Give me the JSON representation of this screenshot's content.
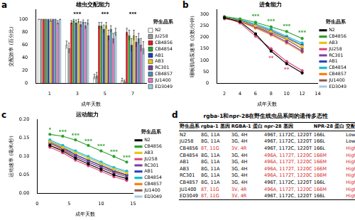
{
  "chart_data": [
    {
      "panel": "a",
      "type": "bar",
      "title": "雄虫交配能力",
      "x_label": "成年天数",
      "y_label": "交配效率 (百分比)",
      "categories": [
        "1",
        "3",
        "5",
        "7"
      ],
      "ylim": [
        0,
        115
      ],
      "yticks": [
        0,
        20,
        40,
        60,
        80,
        100
      ],
      "grid": false,
      "legend": "right",
      "legend_title": "野生品系",
      "series": [
        {
          "name": "N2",
          "color": "#ffffff",
          "values": [
            100,
            60,
            10,
            5
          ],
          "errors": [
            0,
            6,
            4,
            3
          ]
        },
        {
          "name": "JU258",
          "color": "#9a9a9a",
          "values": [
            100,
            55,
            12,
            3
          ],
          "errors": [
            0,
            8,
            5,
            2
          ]
        },
        {
          "name": "CB4856",
          "color": "#e41a1c",
          "values": [
            100,
            95,
            90,
            80
          ],
          "errors": [
            0,
            3,
            5,
            6
          ]
        },
        {
          "name": "CB4854",
          "color": "#2ca02c",
          "values": [
            100,
            98,
            90,
            75
          ],
          "errors": [
            0,
            2,
            5,
            8
          ]
        },
        {
          "name": "AB1",
          "color": "#1f3fbf",
          "values": [
            100,
            95,
            85,
            60
          ],
          "errors": [
            0,
            4,
            6,
            10
          ]
        },
        {
          "name": "AB3",
          "color": "#e6c619",
          "values": [
            98,
            97,
            90,
            75
          ],
          "errors": [
            2,
            3,
            5,
            8
          ]
        },
        {
          "name": "RC301",
          "color": "#7b3f9e",
          "values": [
            100,
            92,
            75,
            65
          ],
          "errors": [
            0,
            4,
            8,
            8
          ]
        },
        {
          "name": "CB4857",
          "color": "#4f8fb0",
          "values": [
            100,
            96,
            85,
            70
          ],
          "errors": [
            0,
            3,
            5,
            8
          ]
        },
        {
          "name": "JU1400",
          "color": "#e377c2",
          "values": [
            95,
            90,
            70,
            60
          ],
          "errors": [
            3,
            5,
            8,
            10
          ]
        },
        {
          "name": "ED3049",
          "color": "#9ecae1",
          "values": [
            100,
            95,
            80,
            55
          ],
          "errors": [
            0,
            4,
            6,
            10
          ]
        }
      ],
      "annotations": [
        {
          "x": "3",
          "y": 108,
          "text": "***",
          "color": "#000000"
        },
        {
          "x": "5",
          "y": 108,
          "text": "***",
          "color": "#000000"
        },
        {
          "x": "7",
          "y": 108,
          "text": "***",
          "color": "#000000"
        }
      ]
    },
    {
      "panel": "b",
      "type": "line",
      "title": "进食能力",
      "x_label": "成年天数",
      "y_label": "咽喉肌肉泵速率 (次数/分钟)",
      "x": [
        2,
        4,
        6,
        8,
        10,
        12
      ],
      "xlim": [
        1,
        14
      ],
      "xticks": [
        2,
        4,
        6,
        8,
        10,
        12,
        14
      ],
      "ylim": [
        0,
        320
      ],
      "yticks": [
        0,
        50,
        100,
        150,
        200,
        250,
        300
      ],
      "grid": false,
      "legend": "right",
      "legend_title": "野生品系",
      "marker": "circle",
      "series": [
        {
          "name": "N2",
          "color": "#000000",
          "values": [
            285,
            268,
            215,
            140,
            85,
            45
          ]
        },
        {
          "name": "CB4856",
          "color": "#2ca02c",
          "values": [
            290,
            280,
            265,
            245,
            225,
            195
          ]
        },
        {
          "name": "AB3",
          "color": "#e6c619",
          "values": [
            285,
            272,
            250,
            225,
            195,
            160
          ]
        },
        {
          "name": "JU258",
          "color": "#e0407a",
          "values": [
            288,
            262,
            205,
            150,
            95,
            55
          ]
        },
        {
          "name": "RC301",
          "color": "#7b3f9e",
          "values": [
            282,
            270,
            245,
            215,
            180,
            140
          ]
        },
        {
          "name": "AB1",
          "color": "#1f3fbf",
          "values": [
            286,
            274,
            252,
            228,
            198,
            165
          ]
        },
        {
          "name": "CB4854",
          "color": "#17becf",
          "values": [
            284,
            276,
            258,
            235,
            205,
            175
          ]
        },
        {
          "name": "CB4857",
          "color": "#ff7f0e",
          "values": [
            280,
            268,
            240,
            210,
            175,
            135
          ]
        },
        {
          "name": "JU1400",
          "color": "#8c564b",
          "values": [
            287,
            270,
            248,
            220,
            190,
            150
          ]
        },
        {
          "name": "ED3049",
          "color": "#9ecae1",
          "values": [
            283,
            272,
            255,
            232,
            200,
            170
          ]
        }
      ],
      "annotations": [
        {
          "x": 6,
          "y": 290,
          "text": "***",
          "color": "#2ca02c"
        },
        {
          "x": 8,
          "y": 268,
          "text": "***",
          "color": "#2ca02c"
        },
        {
          "x": 10,
          "y": 248,
          "text": "***",
          "color": "#2ca02c"
        },
        {
          "x": 12,
          "y": 218,
          "text": "***",
          "color": "#2ca02c"
        },
        {
          "x": 8,
          "y": 110,
          "text": "**",
          "color": "#e0407a"
        },
        {
          "x": 10,
          "y": 58,
          "text": "**",
          "color": "#e0407a"
        }
      ]
    },
    {
      "panel": "c",
      "type": "line",
      "title": "运动能力",
      "x_label": "成年天数",
      "y_label": "运动速率 (毫米/秒)",
      "x": [
        2,
        4,
        6,
        8,
        10,
        12,
        14
      ],
      "xlim": [
        0,
        15
      ],
      "xticks": [
        0,
        5,
        10,
        15
      ],
      "ylim": [
        0,
        0.2
      ],
      "yticks": [
        {
          "value": 0,
          "label": "0.00"
        },
        {
          "value": 0.05,
          "label": "0.05"
        },
        {
          "value": 0.1,
          "label": "0.10"
        },
        {
          "value": 0.15,
          "label": "0.15"
        },
        {
          "value": 0.2,
          "label": "0.20"
        }
      ],
      "grid": false,
      "legend": "right",
      "legend_title": "野生品系",
      "marker": "circle",
      "series": [
        {
          "name": "N2",
          "color": "#000000",
          "values": [
            0.13,
            0.115,
            0.095,
            0.08,
            0.065,
            0.05,
            0.04
          ]
        },
        {
          "name": "CB4856",
          "color": "#2ca02c",
          "values": [
            0.16,
            0.155,
            0.145,
            0.13,
            0.115,
            0.1,
            0.085
          ]
        },
        {
          "name": "AB3",
          "color": "#e6c619",
          "values": [
            0.14,
            0.125,
            0.11,
            0.095,
            0.08,
            0.065,
            0.055
          ]
        },
        {
          "name": "JU258",
          "color": "#e0407a",
          "values": [
            0.125,
            0.11,
            0.09,
            0.075,
            0.06,
            0.045,
            0.035
          ]
        },
        {
          "name": "RC301",
          "color": "#7b3f9e",
          "values": [
            0.135,
            0.12,
            0.1,
            0.085,
            0.07,
            0.055,
            0.045
          ]
        },
        {
          "name": "AB1",
          "color": "#1f3fbf",
          "values": [
            0.14,
            0.125,
            0.105,
            0.09,
            0.075,
            0.06,
            0.05
          ]
        },
        {
          "name": "CB4854",
          "color": "#17becf",
          "values": [
            0.145,
            0.13,
            0.115,
            0.1,
            0.085,
            0.07,
            0.06
          ]
        },
        {
          "name": "CB4857",
          "color": "#ff7f0e",
          "values": [
            0.13,
            0.118,
            0.1,
            0.085,
            0.07,
            0.058,
            0.048
          ]
        },
        {
          "name": "JU1400",
          "color": "#8c564b",
          "values": [
            0.138,
            0.122,
            0.105,
            0.09,
            0.076,
            0.062,
            0.05
          ]
        },
        {
          "name": "ED3049",
          "color": "#9ecae1",
          "values": [
            0.142,
            0.128,
            0.112,
            0.097,
            0.082,
            0.068,
            0.057
          ]
        }
      ],
      "annotations": [
        {
          "x": 2,
          "y": 0.172,
          "text": "*",
          "color": "#2ca02c"
        },
        {
          "x": 4,
          "y": 0.167,
          "text": "***",
          "color": "#2ca02c"
        },
        {
          "x": 6,
          "y": 0.157,
          "text": "***",
          "color": "#2ca02c"
        },
        {
          "x": 8,
          "y": 0.142,
          "text": "***",
          "color": "#2ca02c"
        },
        {
          "x": 10,
          "y": 0.127,
          "text": "***",
          "color": "#2ca02c"
        },
        {
          "x": 12,
          "y": 0.112,
          "text": "***",
          "color": "#2ca02c"
        },
        {
          "x": 14,
          "y": 0.097,
          "text": "***",
          "color": "#2ca02c"
        }
      ]
    }
  ],
  "table_panel": {
    "panel": "d",
    "title": "rgba-1和npr-28在野生线虫品系间的遗传多态性",
    "highlight_color": "#d62728",
    "header": [
      "野生品系",
      "rgba-1 基因",
      "RGBA-1 蛋白",
      "npr-28 基因",
      "NPR-28 蛋白",
      "交配能力"
    ],
    "rows": [
      {
        "cells": [
          "N2",
          "8G, 11A",
          "3G, 4H",
          "496T, 1172C, 1220T",
          "166L",
          "Low"
        ],
        "red": []
      },
      {
        "cells": [
          "JU258",
          "8G, 11A",
          "3G, 4H",
          "496T, 1172C, 1220T",
          "166L",
          "Low"
        ],
        "red": []
      },
      {
        "cells": [
          "CB4856",
          "8T, 11G",
          "3V, 4R",
          "496T, 1172C, 1220T",
          "166L",
          "High"
        ],
        "red": [
          1,
          2,
          5
        ]
      },
      {
        "cells": [
          "CB4854",
          "8G, 11A",
          "3G, 4H",
          "496A, 1172T, 1220C",
          "166M",
          "High"
        ],
        "red": [
          3,
          4,
          5
        ]
      },
      {
        "cells": [
          "AB1",
          "8G, 11A",
          "3G, 4H",
          "496A, 1172T, 1220C",
          "166M",
          "High"
        ],
        "red": [
          3,
          4,
          5
        ]
      },
      {
        "cells": [
          "AB3",
          "8G, 11A",
          "3G, 4H",
          "496A, 1172T, 1220C",
          "166M",
          "High"
        ],
        "red": [
          3,
          4,
          5
        ]
      },
      {
        "cells": [
          "RC301",
          "8G, 11A",
          "3G, 4H",
          "496A, 1172T, 1220C",
          "166M",
          "High"
        ],
        "red": [
          3,
          4,
          5
        ]
      },
      {
        "cells": [
          "CB4857",
          "8G, 11A",
          "3G, 4H",
          "496T, 1172C, 1220T",
          "166L",
          "High"
        ],
        "red": [
          5
        ]
      },
      {
        "cells": [
          "JU1400",
          "8T, 11G",
          "3V, 4R",
          "496A, 1172T, 1220C",
          "166M",
          "High"
        ],
        "red": [
          1,
          2,
          3,
          4,
          5
        ]
      },
      {
        "cells": [
          "ED3049",
          "8T, 11G",
          "3V, 4R",
          "496T, 1172C, 1220T",
          "166L",
          "High"
        ],
        "red": [
          1,
          2,
          5
        ]
      }
    ]
  }
}
